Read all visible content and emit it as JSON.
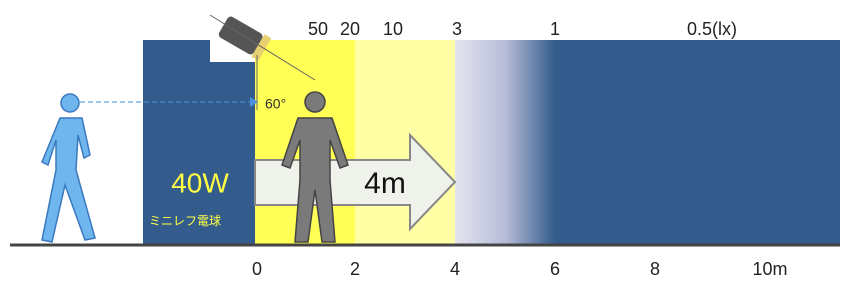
{
  "lux_labels": [
    "50",
    "20",
    "10",
    "3",
    "1",
    "0.5(lx)"
  ],
  "distance_labels": [
    "0",
    "2",
    "4",
    "6",
    "8",
    "10m"
  ],
  "lamp": {
    "power": "40W",
    "type": "ミニレフ電球"
  },
  "detection_distance": "4m",
  "angle": "60°"
}
